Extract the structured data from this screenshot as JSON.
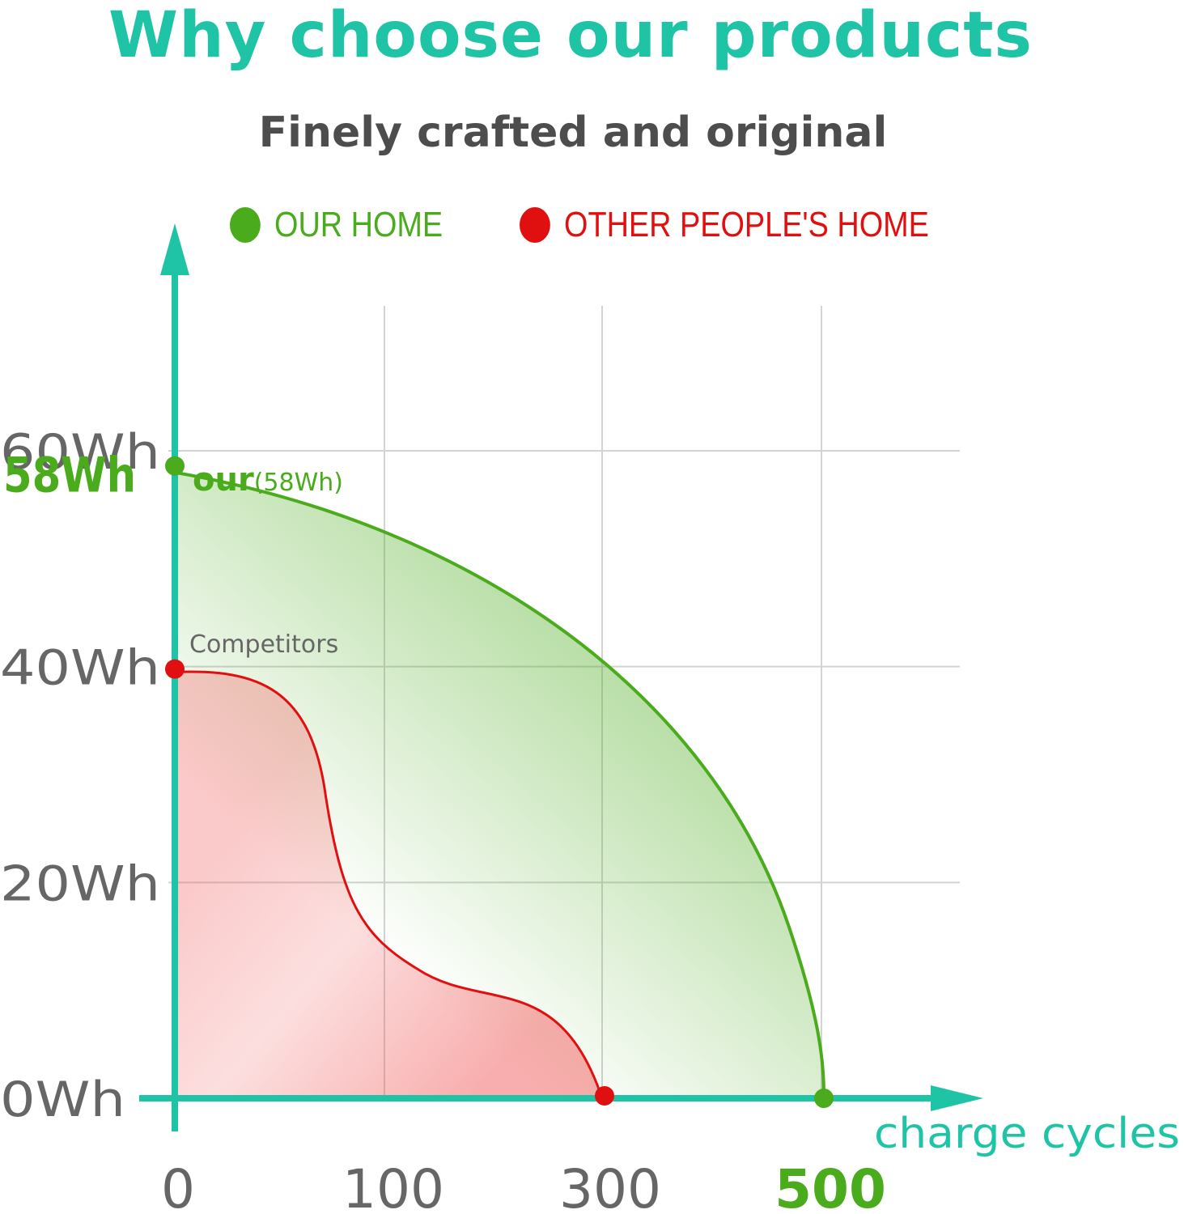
{
  "colors": {
    "title": "#1fc4a6",
    "axis": "#1fc4a6",
    "grid": "#d3d3d3",
    "ours": "#4aab1c",
    "theirs": "#e01010",
    "label_grey": "#666666",
    "subtitle": "#4d4d4d"
  },
  "header": {
    "title": "Why choose our products",
    "subtitle": "Finely crafted and original"
  },
  "chart_data": {
    "type": "area",
    "title": "Why choose our products",
    "subtitle": "Finely crafted and original",
    "xlabel": "charge cycles",
    "ylabel": "",
    "x_ticks": [
      {
        "value": 0,
        "label": "0"
      },
      {
        "value": 100,
        "label": "100"
      },
      {
        "value": 300,
        "label": "300"
      },
      {
        "value": 500,
        "label": "500"
      }
    ],
    "y_ticks": [
      {
        "value": 0,
        "label": "0Wh"
      },
      {
        "value": 20,
        "label": "20Wh"
      },
      {
        "value": 40,
        "label": "40Wh"
      },
      {
        "value": 60,
        "label": "60Wh"
      }
    ],
    "y_highlight": {
      "value": 58,
      "label": "58Wh"
    },
    "grid": true,
    "legend_position": "top",
    "series": [
      {
        "name": "OUR HOME",
        "color": "#4aab1c",
        "annotation": "our",
        "annotation_detail": "(58Wh)",
        "x": [
          0,
          100,
          200,
          300,
          400,
          500
        ],
        "y": [
          58,
          52,
          46,
          39,
          26,
          0
        ]
      },
      {
        "name": "OTHER PEOPLE'S HOME",
        "color": "#e01010",
        "annotation": "Competitors",
        "x": [
          0,
          50,
          100,
          150,
          200,
          250,
          300
        ],
        "y": [
          40,
          38,
          31,
          18,
          13,
          10,
          0
        ]
      }
    ]
  }
}
